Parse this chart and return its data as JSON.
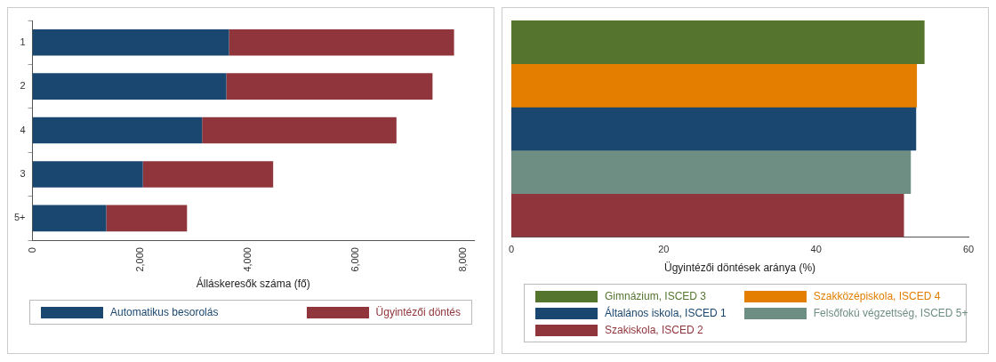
{
  "chart_data": [
    {
      "type": "bar",
      "orientation": "horizontal",
      "stacked": true,
      "categories": [
        "1",
        "2",
        "4",
        "3",
        "5+"
      ],
      "xlabel": "Álláskeresők száma (fő)",
      "xlim": [
        0,
        8200
      ],
      "xticks": [
        0,
        {
          "value": 2000,
          "label": "2,000"
        },
        {
          "value": 4000,
          "label": "4,000"
        },
        {
          "value": 6000,
          "label": "6,000"
        },
        {
          "value": 8000,
          "label": "8,000"
        }
      ],
      "grid": false,
      "legend": "bottom",
      "series": [
        {
          "name": "Automatikus besorolás",
          "color": "#1a476f",
          "values": [
            3650,
            3600,
            3150,
            2050,
            1370
          ]
        },
        {
          "name": "Ügyintézői döntés",
          "color": "#90353b",
          "values": [
            4180,
            3830,
            3610,
            2420,
            1500
          ]
        }
      ]
    },
    {
      "type": "bar",
      "orientation": "horizontal",
      "stacked": true,
      "categories": [
        null,
        null,
        null,
        null,
        null
      ],
      "xlabel": "Ügyintézői döntések aránya (%)",
      "xlim": [
        0,
        60
      ],
      "xticks": [
        0,
        20,
        40,
        60
      ],
      "grid": false,
      "legend": "bottom",
      "tick_labels": "x",
      "series": [
        {
          "name": "Gimnázium, ISCED 3",
          "color": "#55752f",
          "values": [
            54.2,
            null,
            null,
            null,
            null
          ]
        },
        {
          "name": "Szakközépiskola, ISCED 4",
          "color": "#e37e00",
          "values": [
            null,
            53.2,
            null,
            null,
            null
          ]
        },
        {
          "name": "Általános iskola, ISCED 1",
          "color": "#1a476f",
          "values": [
            null,
            null,
            53.1,
            null,
            null
          ]
        },
        {
          "name": "Felsőfokú végzettség, ISCED 5+",
          "color": "#6e8e84",
          "values": [
            null,
            null,
            null,
            52.4,
            null
          ]
        },
        {
          "name": "Szakiskola, ISCED 2",
          "color": "#90353b",
          "values": [
            null,
            null,
            null,
            null,
            51.5
          ]
        }
      ]
    }
  ]
}
